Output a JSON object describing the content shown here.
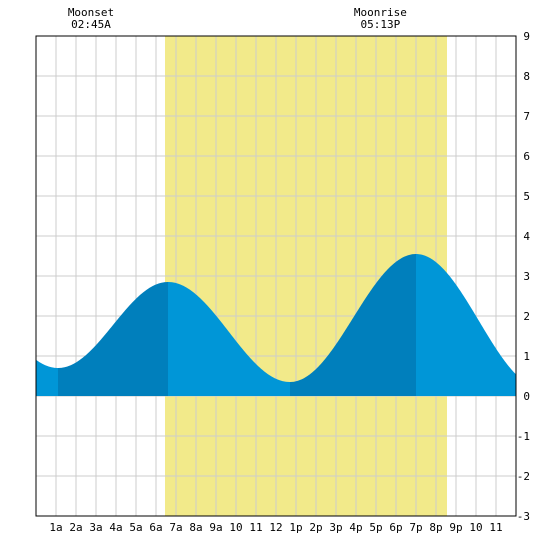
{
  "chart_data": {
    "type": "area",
    "title": "",
    "xlabel": "",
    "ylabel": "",
    "x_unit": "hour of day",
    "xlim": [
      0,
      24
    ],
    "ylim": [
      -3,
      9
    ],
    "grid": true,
    "x_tick_labels": [
      "1a",
      "2a",
      "3a",
      "4a",
      "5a",
      "6a",
      "7a",
      "8a",
      "9a",
      "10",
      "11",
      "12",
      "1p",
      "2p",
      "3p",
      "4p",
      "5p",
      "6p",
      "7p",
      "8p",
      "9p",
      "10",
      "11"
    ],
    "y_tick_labels": [
      "-3",
      "-2",
      "-1",
      "0",
      "1",
      "2",
      "3",
      "4",
      "5",
      "6",
      "7",
      "8",
      "9"
    ],
    "daylight": {
      "start": 6.45,
      "end": 20.55,
      "color": "#f2ea8a"
    },
    "moon_events": [
      {
        "name": "Moonset",
        "time": "02:45A",
        "hour": 2.75
      },
      {
        "name": "Moonrise",
        "time": "05:13P",
        "hour": 17.22
      }
    ],
    "tide_extremes": [
      {
        "hour": 1.1,
        "level": 0.7
      },
      {
        "hour": 6.6,
        "level": 2.85
      },
      {
        "hour": 12.7,
        "level": 0.35
      },
      {
        "hour": 19.0,
        "level": 3.55
      },
      {
        "hour": 25.3,
        "level": 0.2
      }
    ],
    "series": [
      {
        "x": [
          0,
          1,
          2,
          3,
          4,
          5,
          6,
          7,
          8,
          9,
          10,
          11,
          12,
          13,
          14,
          15,
          16,
          17,
          18,
          19,
          20,
          21,
          22,
          23,
          24
        ],
        "values": [
          0.8,
          0.7,
          0.98,
          1.68,
          2.35,
          2.77,
          2.85,
          2.69,
          2.23,
          1.6,
          0.98,
          0.52,
          0.36,
          0.38,
          0.72,
          1.5,
          2.46,
          3.2,
          3.52,
          3.55,
          3.38,
          2.91,
          2.21,
          1.51,
          0.95
        ]
      }
    ],
    "colors": {
      "water": "#0096d7",
      "water_dark": "#007fbc",
      "grid": "#cccccc",
      "axis": "#000000"
    }
  }
}
